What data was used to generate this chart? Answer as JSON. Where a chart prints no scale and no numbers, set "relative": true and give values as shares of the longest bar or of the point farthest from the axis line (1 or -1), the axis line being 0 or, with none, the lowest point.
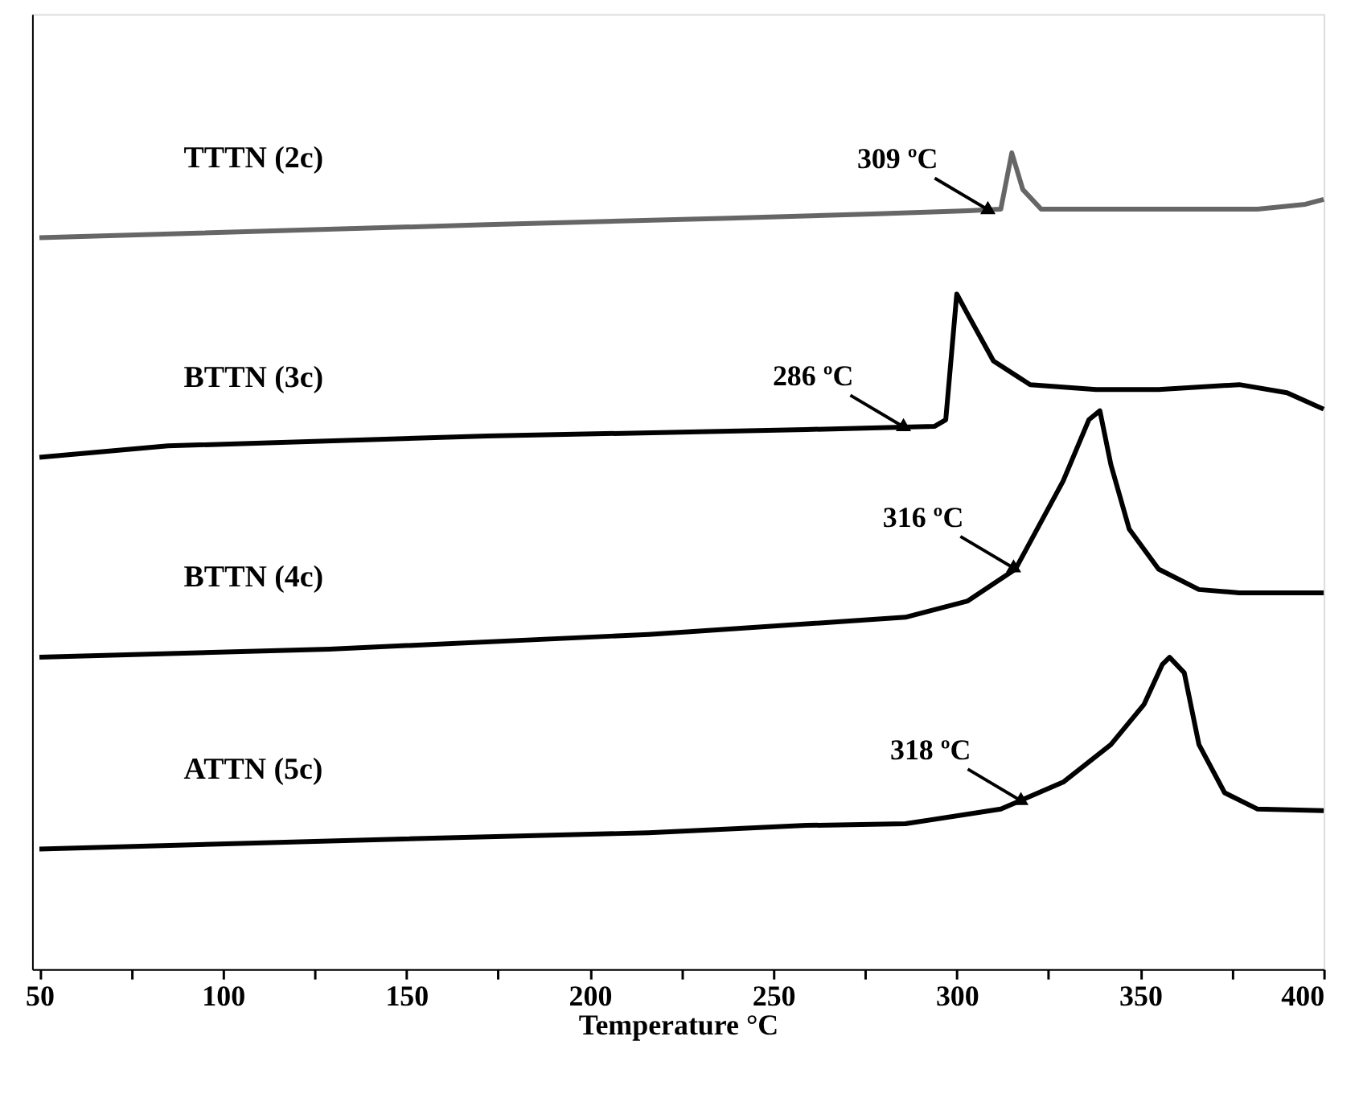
{
  "chart_data": {
    "type": "line",
    "relative": true,
    "xlabel": "Temperature °C",
    "xlim": [
      48,
      400
    ],
    "xticks": [
      50,
      {
        "value": 75,
        "label": null
      },
      100,
      {
        "value": 125,
        "label": null
      },
      150,
      {
        "value": 175,
        "label": null
      },
      200,
      {
        "value": 225,
        "label": null
      },
      250,
      {
        "value": 275,
        "label": null
      },
      300,
      {
        "value": 325,
        "label": null
      },
      350,
      {
        "value": 375,
        "label": null
      },
      400
    ],
    "grid": false,
    "legend": false,
    "marker": "none",
    "line_style": "solid",
    "tick_labels": "x",
    "series": [
      {
        "name": "TTTN (2c)",
        "color": "#666666",
        "x": [
          50,
          172,
          238,
          277,
          303,
          312,
          315,
          318,
          323,
          347,
          382,
          395,
          400
        ],
        "values": [
          0.896,
          0.912,
          0.92,
          0.925,
          0.929,
          0.931,
          1.0,
          0.955,
          0.931,
          0.931,
          0.931,
          0.937,
          0.943
        ]
      },
      {
        "name": "BTTN (3c)",
        "color": "#000000",
        "x": [
          50,
          85,
          172,
          259,
          294,
          297,
          300,
          303,
          310,
          320,
          338,
          355,
          377,
          390,
          400
        ],
        "values": [
          0.627,
          0.641,
          0.653,
          0.661,
          0.665,
          0.673,
          0.827,
          0.802,
          0.745,
          0.716,
          0.71,
          0.71,
          0.716,
          0.706,
          0.686
        ]
      },
      {
        "name": "BTTN (4c)",
        "color": "#000000",
        "x": [
          50,
          129,
          216,
          286,
          303,
          316,
          329,
          336,
          339,
          342,
          347,
          355,
          366,
          377,
          400
        ],
        "values": [
          0.382,
          0.392,
          0.41,
          0.431,
          0.451,
          0.49,
          0.598,
          0.673,
          0.684,
          0.618,
          0.539,
          0.49,
          0.465,
          0.461,
          0.461
        ]
      },
      {
        "name": "ATTN (5c)",
        "color": "#000000",
        "x": [
          50,
          129,
          216,
          259,
          286,
          312,
          329,
          342,
          351,
          356,
          358,
          362,
          366,
          373,
          382,
          400
        ],
        "values": [
          0.147,
          0.157,
          0.167,
          0.176,
          0.178,
          0.196,
          0.229,
          0.275,
          0.324,
          0.373,
          0.382,
          0.363,
          0.275,
          0.216,
          0.196,
          0.194
        ]
      }
    ],
    "annotations": [
      {
        "text": "309 ºC",
        "x": 309,
        "y": 0.929
      },
      {
        "text": "286 ºC",
        "x": 286,
        "y": 0.663
      },
      {
        "text": "316 ºC",
        "x": 316,
        "y": 0.49
      },
      {
        "text": "318 ºC",
        "x": 318,
        "y": 0.205
      }
    ]
  }
}
